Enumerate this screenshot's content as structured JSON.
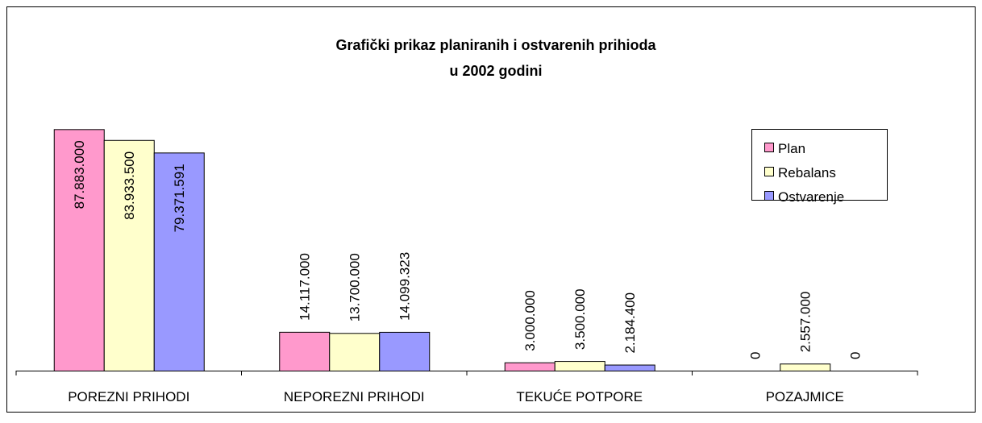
{
  "chart_data": {
    "type": "bar",
    "title": [
      "Grafički prikaz planiranih i ostvarenih prihioda",
      "u  2002 godini"
    ],
    "categories": [
      "POREZNI PRIHODI",
      "NEPOREZNI PRIHODI",
      "TEKUĆE POTPORE",
      "POZAJMICE"
    ],
    "series": [
      {
        "name": "Plan",
        "color": "#ff99cc",
        "values": [
          87883000,
          14117000,
          3000000,
          0
        ],
        "value_labels": [
          "87.883.000",
          "14.117.000",
          "3.000.000",
          "0"
        ]
      },
      {
        "name": "Rebalans",
        "color": "#ffffcc",
        "values": [
          83933500,
          13700000,
          3500000,
          2557000
        ],
        "value_labels": [
          "83.933.500",
          "13.700.000",
          "3.500.000",
          "2.557.000"
        ]
      },
      {
        "name": "Ostvarenje",
        "color": "#9999ff",
        "values": [
          79371591,
          14099323,
          2184400,
          0
        ],
        "value_labels": [
          "79.371.591",
          "14.099.323",
          "2.184.400",
          "0"
        ]
      }
    ],
    "ylim": [
      0,
      100000000
    ],
    "legend": "right"
  }
}
